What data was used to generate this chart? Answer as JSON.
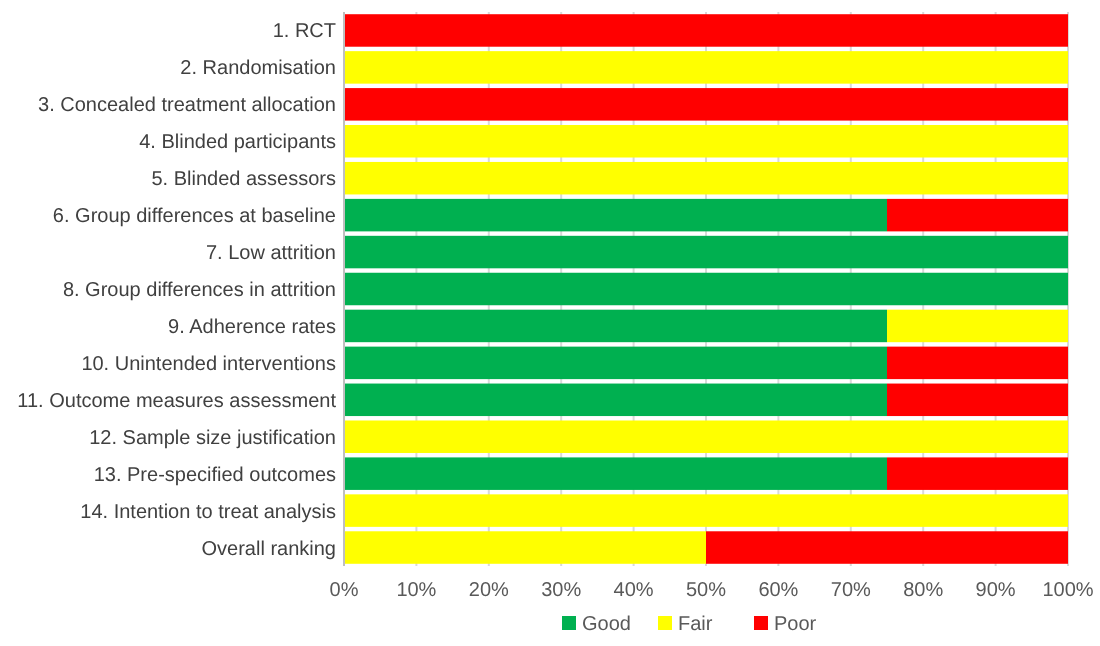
{
  "chart_data": {
    "type": "bar",
    "orientation": "horizontal",
    "stacked": true,
    "categories": [
      "1. RCT",
      "2. Randomisation",
      "3. Concealed treatment allocation",
      "4. Blinded participants",
      "5. Blinded assessors",
      "6. Group differences at baseline",
      "7. Low attrition",
      "8. Group differences in attrition",
      "9. Adherence rates",
      "10. Unintended interventions",
      "11. Outcome measures assessment",
      "12. Sample size justification",
      "13. Pre-specified outcomes",
      "14. Intention to treat analysis",
      "Overall ranking"
    ],
    "series": [
      {
        "name": "Good",
        "color": "#00b050",
        "values": [
          0,
          0,
          0,
          0,
          0,
          75,
          100,
          100,
          75,
          75,
          75,
          0,
          75,
          0,
          0
        ]
      },
      {
        "name": "Fair",
        "color": "#ffff00",
        "values": [
          0,
          100,
          0,
          100,
          100,
          0,
          0,
          0,
          25,
          0,
          0,
          100,
          0,
          100,
          50
        ]
      },
      {
        "name": "Poor",
        "color": "#ff0000",
        "values": [
          100,
          0,
          100,
          0,
          0,
          25,
          0,
          0,
          0,
          25,
          25,
          0,
          25,
          0,
          50
        ]
      }
    ],
    "xlim": [
      0,
      100
    ],
    "xticks": [
      {
        "value": 0,
        "label": "0%"
      },
      {
        "value": 10,
        "label": "10%"
      },
      {
        "value": 20,
        "label": "20%"
      },
      {
        "value": 30,
        "label": "30%"
      },
      {
        "value": 40,
        "label": "40%"
      },
      {
        "value": 50,
        "label": "50%"
      },
      {
        "value": 60,
        "label": "60%"
      },
      {
        "value": 70,
        "label": "70%"
      },
      {
        "value": 80,
        "label": "80%"
      },
      {
        "value": 90,
        "label": "90%"
      },
      {
        "value": 100,
        "label": "100%"
      }
    ],
    "grid": "x",
    "legend": "bottom"
  }
}
